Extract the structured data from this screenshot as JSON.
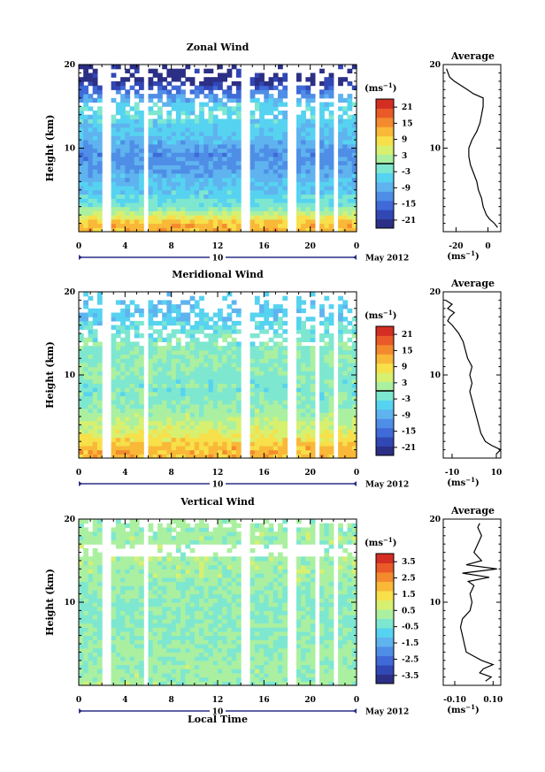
{
  "chart_data": [
    {
      "type": "heatmap",
      "title": "Zonal Wind",
      "ylabel": "Height (km)",
      "yticks": [
        "20",
        "10"
      ],
      "ylim": [
        0,
        20
      ],
      "xlim": [
        0,
        24
      ],
      "xticks": [
        "0",
        "4",
        "8",
        "12",
        "16",
        "20",
        "0"
      ],
      "day_label": "10",
      "date_label": "May 2012",
      "colorbar": {
        "unit_label": "(ms",
        "unit_exp": "−1",
        "ticks": [
          "21",
          "15",
          "9",
          "3",
          "-3",
          "-9",
          "-15",
          "-21"
        ],
        "range": [
          -24,
          24
        ],
        "zero_line": true
      },
      "gaps": [
        [
          2.0,
          2.7
        ],
        [
          5.7,
          6.0
        ],
        [
          14.2,
          14.8
        ],
        [
          18.0,
          18.6
        ],
        [
          20.3,
          20.6
        ],
        [
          22.2,
          22.5
        ]
      ],
      "profile_summary": [
        {
          "height": 1,
          "value": 12
        },
        {
          "height": 3,
          "value": -2
        },
        {
          "height": 5,
          "value": -6
        },
        {
          "height": 9,
          "value": -12
        },
        {
          "height": 12,
          "value": -6
        },
        {
          "height": 15,
          "value": -4
        },
        {
          "height": 18,
          "value": -22
        }
      ],
      "average": {
        "title": "Average",
        "yticks": [
          "20",
          "10"
        ],
        "xticks": [
          "-20",
          "0"
        ],
        "xlabel": "(ms",
        "xlabel_exp": "−1",
        "xlim": [
          -28,
          8
        ],
        "profile": [
          {
            "h": 0.5,
            "v": 6
          },
          {
            "h": 1.0,
            "v": 4
          },
          {
            "h": 1.5,
            "v": 1
          },
          {
            "h": 2.0,
            "v": -1
          },
          {
            "h": 3.0,
            "v": -3
          },
          {
            "h": 4.0,
            "v": -4
          },
          {
            "h": 5.0,
            "v": -6
          },
          {
            "h": 6.0,
            "v": -7
          },
          {
            "h": 7.0,
            "v": -9
          },
          {
            "h": 8.0,
            "v": -11
          },
          {
            "h": 9.0,
            "v": -12
          },
          {
            "h": 10.0,
            "v": -12
          },
          {
            "h": 11.0,
            "v": -10
          },
          {
            "h": 12.0,
            "v": -7
          },
          {
            "h": 13.0,
            "v": -5
          },
          {
            "h": 14.0,
            "v": -4
          },
          {
            "h": 15.0,
            "v": -3
          },
          {
            "h": 16.0,
            "v": -3
          },
          {
            "h": 16.5,
            "v": -9
          },
          {
            "h": 17.0,
            "v": -13
          },
          {
            "h": 17.5,
            "v": -17
          },
          {
            "h": 18.0,
            "v": -21
          },
          {
            "h": 18.5,
            "v": -24
          },
          {
            "h": 19.0,
            "v": -25
          },
          {
            "h": 19.5,
            "v": -26
          }
        ]
      }
    },
    {
      "type": "heatmap",
      "title": "Meridional Wind",
      "ylabel": "Height (km)",
      "yticks": [
        "20",
        "10"
      ],
      "ylim": [
        0,
        20
      ],
      "xlim": [
        0,
        24
      ],
      "xticks": [
        "0",
        "4",
        "8",
        "12",
        "16",
        "20",
        "0"
      ],
      "day_label": "10",
      "date_label": "May 2012",
      "colorbar": {
        "unit_label": "(ms",
        "unit_exp": "−1",
        "ticks": [
          "21",
          "15",
          "9",
          "3",
          "-3",
          "-9",
          "-15",
          "-21"
        ],
        "range": [
          -24,
          24
        ],
        "zero_line": true
      },
      "gaps": [
        [
          2.0,
          2.7
        ],
        [
          5.7,
          6.0
        ],
        [
          14.2,
          14.8
        ],
        [
          18.0,
          18.6
        ],
        [
          20.3,
          20.6
        ],
        [
          22.2,
          22.5
        ]
      ],
      "profile_summary": [
        {
          "height": 1,
          "value": 12
        },
        {
          "height": 3,
          "value": 6
        },
        {
          "height": 5,
          "value": 2
        },
        {
          "height": 8,
          "value": -2
        },
        {
          "height": 12,
          "value": 0
        },
        {
          "height": 15,
          "value": -2
        },
        {
          "height": 17,
          "value": -6
        }
      ],
      "average": {
        "title": "Average",
        "yticks": [
          "20",
          "10"
        ],
        "xticks": [
          "-10",
          "10"
        ],
        "xlabel": "(ms",
        "xlabel_exp": "−1",
        "xlim": [
          -14,
          12
        ],
        "profile": [
          {
            "h": 0.5,
            "v": 10
          },
          {
            "h": 1.0,
            "v": 12
          },
          {
            "h": 1.5,
            "v": 8
          },
          {
            "h": 2.0,
            "v": 5
          },
          {
            "h": 3.0,
            "v": 3
          },
          {
            "h": 4.0,
            "v": 2
          },
          {
            "h": 5.0,
            "v": 1
          },
          {
            "h": 6.0,
            "v": 0
          },
          {
            "h": 7.0,
            "v": -1
          },
          {
            "h": 8.0,
            "v": -2
          },
          {
            "h": 9.0,
            "v": -1
          },
          {
            "h": 10.0,
            "v": -2
          },
          {
            "h": 11.0,
            "v": -1
          },
          {
            "h": 12.0,
            "v": -3
          },
          {
            "h": 13.0,
            "v": -4
          },
          {
            "h": 14.0,
            "v": -5
          },
          {
            "h": 15.0,
            "v": -7
          },
          {
            "h": 16.0,
            "v": -10
          },
          {
            "h": 16.5,
            "v": -12
          },
          {
            "h": 17.0,
            "v": -11
          },
          {
            "h": 17.5,
            "v": -9
          },
          {
            "h": 18.0,
            "v": -12
          },
          {
            "h": 18.5,
            "v": -10
          },
          {
            "h": 19.0,
            "v": -13
          }
        ]
      }
    },
    {
      "type": "heatmap",
      "title": "Vertical Wind",
      "ylabel": "Height (km)",
      "xlabel": "Local Time",
      "yticks": [
        "20",
        "10"
      ],
      "ylim": [
        0,
        20
      ],
      "xlim": [
        0,
        24
      ],
      "xticks": [
        "0",
        "4",
        "8",
        "12",
        "16",
        "20",
        "0"
      ],
      "day_label": "10",
      "date_label": "May 2012",
      "colorbar": {
        "unit_label": "(ms",
        "unit_exp": "−1",
        "ticks": [
          "3.5",
          "2.5",
          "1.5",
          "0.5",
          "-0.5",
          "-1.5",
          "-2.5",
          "-3.5"
        ],
        "range": [
          -4,
          4
        ],
        "zero_line": false
      },
      "gaps": [
        [
          2.0,
          2.7
        ],
        [
          5.7,
          6.0
        ],
        [
          14.2,
          14.8
        ],
        [
          18.0,
          18.6
        ],
        [
          20.3,
          20.6
        ],
        [
          22.2,
          22.5
        ]
      ],
      "profile_summary": [
        {
          "height": 2,
          "value": 0.2
        },
        {
          "height": 6,
          "value": 0.0
        },
        {
          "height": 10,
          "value": -0.1
        },
        {
          "height": 14,
          "value": 0.3
        },
        {
          "height": 18,
          "value": 0.2
        }
      ],
      "average": {
        "title": "Average",
        "yticks": [
          "20",
          "10"
        ],
        "xticks": [
          "-0.10",
          "0.10"
        ],
        "xlabel": "(ms",
        "xlabel_exp": "−1",
        "xlim": [
          -0.16,
          0.14
        ],
        "profile": [
          {
            "h": 0.5,
            "v": 0.06
          },
          {
            "h": 1.0,
            "v": 0.09
          },
          {
            "h": 1.5,
            "v": 0.03
          },
          {
            "h": 2.0,
            "v": 0.05
          },
          {
            "h": 2.5,
            "v": 0.1
          },
          {
            "h": 3.0,
            "v": 0.04
          },
          {
            "h": 3.5,
            "v": 0.0
          },
          {
            "h": 4.0,
            "v": -0.04
          },
          {
            "h": 5.0,
            "v": -0.05
          },
          {
            "h": 6.0,
            "v": -0.06
          },
          {
            "h": 7.0,
            "v": -0.07
          },
          {
            "h": 8.0,
            "v": -0.06
          },
          {
            "h": 9.0,
            "v": -0.02
          },
          {
            "h": 10.0,
            "v": -0.01
          },
          {
            "h": 11.0,
            "v": -0.02
          },
          {
            "h": 12.0,
            "v": 0.0
          },
          {
            "h": 12.5,
            "v": -0.03
          },
          {
            "h": 13.0,
            "v": 0.08
          },
          {
            "h": 13.5,
            "v": -0.06
          },
          {
            "h": 14.0,
            "v": 0.12
          },
          {
            "h": 14.5,
            "v": -0.04
          },
          {
            "h": 15.0,
            "v": 0.04
          },
          {
            "h": 16.0,
            "v": 0.0
          },
          {
            "h": 17.0,
            "v": 0.02
          },
          {
            "h": 18.0,
            "v": 0.04
          },
          {
            "h": 19.0,
            "v": 0.02
          },
          {
            "h": 19.5,
            "v": 0.03
          }
        ]
      }
    }
  ]
}
